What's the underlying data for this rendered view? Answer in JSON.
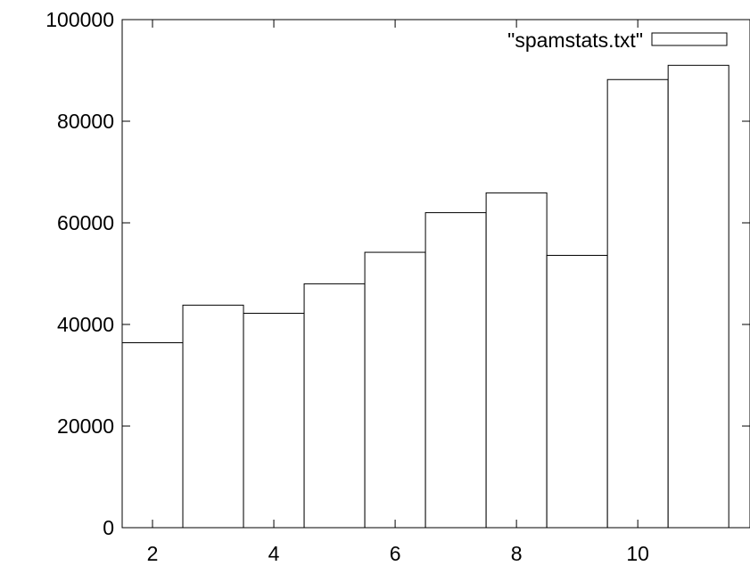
{
  "chart_data": {
    "type": "bar",
    "title": "",
    "xlabel": "",
    "ylabel": "",
    "x": [
      2,
      3,
      4,
      5,
      6,
      7,
      8,
      9,
      10,
      11
    ],
    "series": [
      {
        "name": "\"spamstats.txt\"",
        "values": [
          36400,
          43800,
          42200,
          48000,
          54200,
          62000,
          65900,
          53600,
          88200,
          91000
        ]
      }
    ],
    "xlim": [
      1.5,
      11.85
    ],
    "ylim": [
      0,
      100000
    ],
    "xticks": [
      2,
      4,
      6,
      8,
      10
    ],
    "yticks": [
      0,
      20000,
      40000,
      60000,
      80000,
      100000
    ],
    "bar_width": 1,
    "legend": {
      "position": "top-right",
      "label": "\"spamstats.txt\""
    },
    "grid": false,
    "colors": {
      "bar_fill": "#ffffff",
      "bar_stroke": "#000000"
    }
  }
}
